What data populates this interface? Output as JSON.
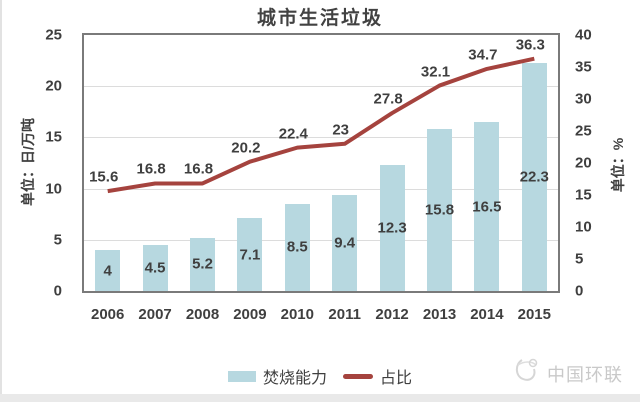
{
  "title": "城市生活垃圾",
  "chart_data": {
    "type": "combo-bar-line",
    "title": "城市生活垃圾",
    "categories": [
      "2006",
      "2007",
      "2008",
      "2009",
      "2010",
      "2011",
      "2012",
      "2013",
      "2014",
      "2015"
    ],
    "series": [
      {
        "name": "焚烧能力",
        "type": "bar",
        "axis": "left",
        "values": [
          4,
          4.5,
          5.2,
          7.1,
          8.5,
          9.4,
          12.3,
          15.8,
          16.5,
          22.3
        ]
      },
      {
        "name": "占比",
        "type": "line",
        "axis": "right",
        "values": [
          15.6,
          16.8,
          16.8,
          20.2,
          22.4,
          23,
          27.8,
          32.1,
          34.7,
          36.3
        ]
      }
    ],
    "left_axis": {
      "title": "单位：日/万吨",
      "min": 0,
      "max": 25,
      "ticks": [
        25,
        20,
        15,
        10,
        5,
        0
      ]
    },
    "right_axis": {
      "title": "单位：%",
      "min": 0,
      "max": 40,
      "ticks": [
        40,
        35,
        30,
        25,
        20,
        15,
        10,
        5,
        0
      ]
    },
    "grid": true,
    "legend_position": "bottom",
    "data_labels": true
  },
  "watermark": {
    "text": "中国环联"
  },
  "colors": {
    "bar": "#b7d8e0",
    "line": "#a5433e",
    "text": "#3f3f3f",
    "grid": "#dcdcdc",
    "plot_border": "#7a7a7a",
    "watermark": "#c9c9c9"
  }
}
